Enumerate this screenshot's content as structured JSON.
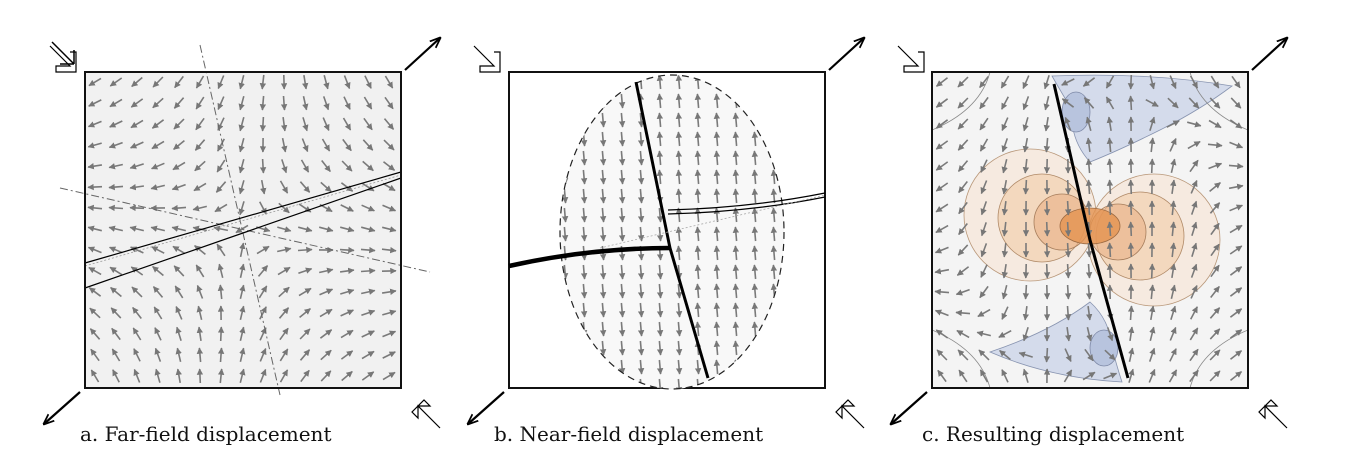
{
  "panels": [
    {
      "id": "a",
      "caption": "a. Far-field displacement"
    },
    {
      "id": "b",
      "caption": "b. Near-field displacement"
    },
    {
      "id": "c",
      "caption": "c. Resulting displacement"
    }
  ],
  "colors": {
    "frame": "#111111",
    "arrow": "#7a7a7a",
    "contour_orange": "#e8a05c",
    "contour_blue": "#c8d2e6",
    "fault": "#000000"
  },
  "icons": [
    "loading-arrow-in-icon",
    "loading-arrow-out-icon"
  ]
}
